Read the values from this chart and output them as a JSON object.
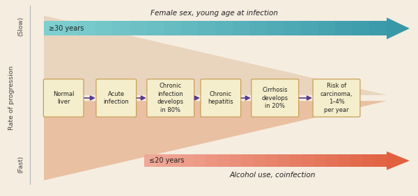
{
  "bg_color": "#f5ede0",
  "box_bg": "#f5eecc",
  "box_border": "#c8a055",
  "box_labels": [
    "Normal\nliver",
    "Acute\ninfection",
    "Chronic\ninfection\ndevelops\nin 80%",
    "Chronic\nhepatitis",
    "Cirrhosis\ndevelops\nin 20%",
    "Risk of\ncarcinoma,\n1–4%\nper year"
  ],
  "arrow_color": "#5b3a8c",
  "top_arrow_color_left": "#7ecfcf",
  "top_arrow_color_right": "#3898a8",
  "top_arrow_label": "Female sex, young age at infection",
  "top_arrow_age": "≥30 years",
  "bottom_arrow_color_left": "#f0a898",
  "bottom_arrow_color_right": "#e06040",
  "bottom_arrow_label": "Alcohol use, coinfection",
  "bottom_arrow_age": "≤20 years",
  "yaxis_label": "Rate of progression",
  "slow_label": "(Slow)",
  "fast_label": "(Fast)",
  "funnel_upper_color": "#e8d0b8",
  "funnel_lower_color": "#e8b898",
  "axis_line_color": "#bbbbbb",
  "text_color": "#222222",
  "label_color": "#444444"
}
